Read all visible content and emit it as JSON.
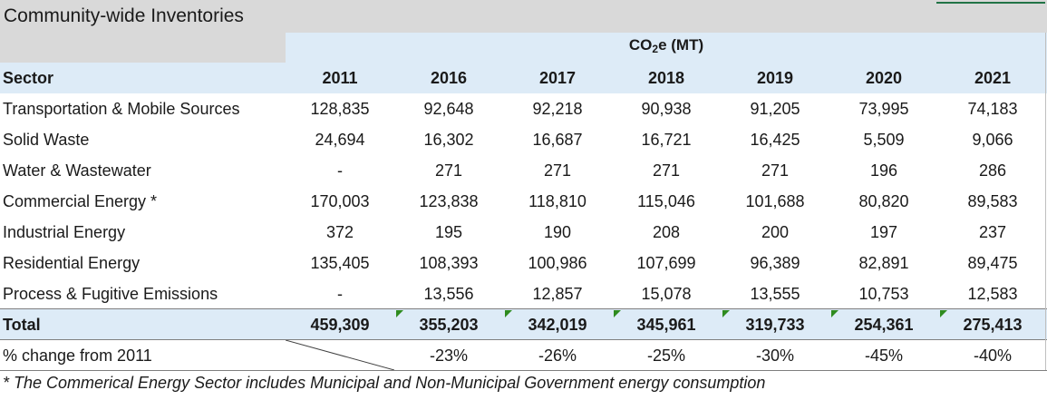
{
  "title": "Community-wide Inventories",
  "units": {
    "prefix": "CO",
    "sub": "2",
    "suffix": "e (MT)"
  },
  "header": {
    "sector": "Sector",
    "years": [
      "2011",
      "2016",
      "2017",
      "2018",
      "2019",
      "2020",
      "2021"
    ]
  },
  "rows": [
    {
      "label": "Transportation & Mobile Sources",
      "values": [
        "128,835",
        "92,648",
        "92,218",
        "90,938",
        "91,205",
        "73,995",
        "74,183"
      ]
    },
    {
      "label": "Solid Waste",
      "values": [
        "24,694",
        "16,302",
        "16,687",
        "16,721",
        "16,425",
        "5,509",
        "9,066"
      ]
    },
    {
      "label": "Water & Wastewater",
      "values": [
        "-",
        "271",
        "271",
        "271",
        "271",
        "196",
        "286"
      ]
    },
    {
      "label": "Commercial Energy *",
      "values": [
        "170,003",
        "123,838",
        "118,810",
        "115,046",
        "101,688",
        "80,820",
        "89,583"
      ]
    },
    {
      "label": "Industrial Energy",
      "values": [
        "372",
        "195",
        "190",
        "208",
        "200",
        "197",
        "237"
      ]
    },
    {
      "label": "Residential Energy",
      "values": [
        "135,405",
        "108,393",
        "100,986",
        "107,699",
        "96,389",
        "82,891",
        "89,475"
      ]
    },
    {
      "label": "Process & Fugitive Emissions",
      "values": [
        "-",
        "13,556",
        "12,857",
        "15,078",
        "13,555",
        "10,753",
        "12,583"
      ]
    }
  ],
  "total": {
    "label": "Total",
    "values": [
      "459,309",
      "355,203",
      "342,019",
      "345,961",
      "319,733",
      "254,361",
      "275,413"
    ]
  },
  "change": {
    "label": "% change from 2011",
    "values": [
      "",
      "-23%",
      "-26%",
      "-25%",
      "-30%",
      "-45%",
      "-40%"
    ]
  },
  "footnote": "* The Commerical Energy Sector includes Municipal and Non-Municipal Government energy consumption",
  "colors": {
    "header_band": "#ddebf7",
    "title_band": "#d9d9d9",
    "error_indicator": "#2e8b1f"
  }
}
